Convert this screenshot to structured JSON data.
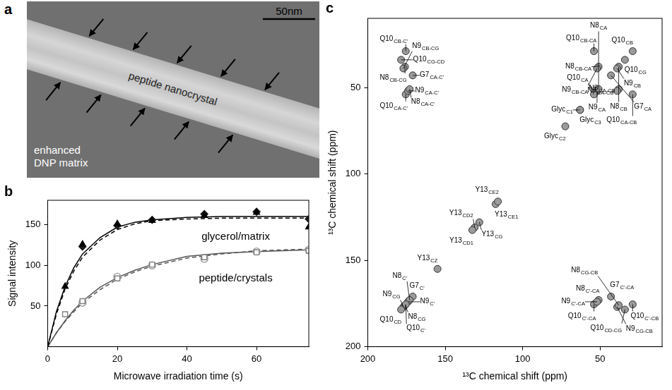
{
  "panel_a": {
    "panel": "a",
    "type": "image",
    "scale_bar": "50nm",
    "band_label": "peptide nanocrystal",
    "matrix_label": [
      "enhanced",
      "DNP matrix"
    ]
  },
  "chart_data": [
    {
      "panel": "b",
      "type": "scatter",
      "x_label": "Microwave irradiation time (s)",
      "y_label": "Signal intensity",
      "xlim": [
        0,
        75
      ],
      "xticks": [
        0,
        20,
        40,
        60
      ],
      "ylim": [
        0,
        180
      ],
      "yticks": [
        50,
        100,
        150
      ],
      "grid": false,
      "series": [
        {
          "type": "scatter",
          "marker": "triangle",
          "color": "#000000",
          "x": [
            5,
            10,
            20,
            30,
            45,
            60,
            75
          ],
          "values": [
            74,
            126,
            151,
            155,
            161,
            165,
            147
          ]
        },
        {
          "type": "scatter",
          "marker": "diamond",
          "color": "#1a1a1a",
          "x": [
            10,
            20,
            30,
            45,
            60,
            75
          ],
          "values": [
            123,
            149,
            156,
            163,
            166,
            157
          ]
        },
        {
          "type": "scatter",
          "marker": "open-square",
          "color": "#808080",
          "x": [
            5,
            10,
            20,
            30,
            45,
            60,
            75
          ],
          "values": [
            40,
            56,
            84,
            101,
            110,
            116,
            118
          ]
        },
        {
          "type": "scatter",
          "marker": "open-circle",
          "color": "#999999",
          "x": [
            10,
            20,
            30,
            45,
            60,
            75
          ],
          "values": [
            54,
            86,
            100,
            108,
            117,
            119
          ]
        },
        {
          "type": "line",
          "line_style": "solid",
          "color": "#000000",
          "x": [
            0,
            2.5,
            5,
            7.5,
            10,
            15,
            20,
            25,
            30,
            40,
            50,
            60,
            75
          ],
          "values": [
            0,
            43,
            74,
            97,
            114,
            134,
            147,
            153,
            156,
            159,
            160,
            160,
            160
          ]
        },
        {
          "type": "line",
          "line_style": "dashed",
          "color": "#000000",
          "x": [
            0,
            2.5,
            5,
            7.5,
            10,
            15,
            20,
            25,
            30,
            40,
            50,
            60,
            75
          ],
          "values": [
            0,
            40,
            71,
            93,
            110,
            131,
            144,
            151,
            155,
            157,
            158,
            158,
            158
          ]
        },
        {
          "type": "line",
          "line_style": "solid",
          "color": "#555555",
          "x": [
            0,
            2.5,
            5,
            7.5,
            10,
            15,
            20,
            25,
            30,
            40,
            50,
            60,
            75
          ],
          "values": [
            0,
            17,
            32,
            45,
            56,
            73,
            85,
            94,
            101,
            111,
            115,
            117,
            119
          ]
        },
        {
          "type": "line",
          "line_style": "dashed",
          "color": "#555555",
          "x": [
            0,
            2.5,
            5,
            7.5,
            10,
            15,
            20,
            25,
            30,
            40,
            50,
            60,
            75
          ],
          "values": [
            0,
            17,
            31,
            43,
            54,
            70,
            83,
            92,
            99,
            109,
            114,
            118,
            120
          ]
        }
      ],
      "annotations": [
        {
          "text": "glycerol/matrix",
          "x": 54,
          "y": 135
        },
        {
          "text": "peptide/crystals",
          "x": 54,
          "y": 84
        }
      ]
    },
    {
      "panel": "c",
      "type": "scatter",
      "x_label": "¹³C chemical shift (ppm)",
      "y_label": "¹³C chemical shift (ppm)",
      "xlim": [
        200,
        10
      ],
      "xticks": [
        200,
        150,
        100,
        50
      ],
      "ylim": [
        200,
        10
      ],
      "yticks": [
        200,
        150,
        100,
        50
      ],
      "grid": false,
      "color": "#9a9a9a",
      "peaks": [
        {
          "residue": "Q10",
          "atoms": "CG-CD",
          "x": 178.5,
          "y": 34
        },
        {
          "residue": "Q10",
          "atoms": "CB-C'",
          "x": 175.5,
          "y": 29
        },
        {
          "residue": "N8",
          "atoms": "CB-CG",
          "x": 176,
          "y": 38
        },
        {
          "residue": "G7",
          "atoms": "CA-C'",
          "x": 171,
          "y": 43
        },
        {
          "residue": "N9",
          "atoms": "CB-CG",
          "x": 177,
          "y": 39
        },
        {
          "residue": "Q10",
          "atoms": "CA-C'",
          "x": 175.5,
          "y": 54
        },
        {
          "residue": "N9",
          "atoms": "CA-C'",
          "x": 174,
          "y": 52
        },
        {
          "residue": "N8",
          "atoms": "CA-C'",
          "x": 173,
          "y": 51
        },
        {
          "residue": "Q10",
          "atoms": "CB-CA",
          "x": 54,
          "y": 29
        },
        {
          "residue": "Q10",
          "atoms": "CB",
          "x": 29,
          "y": 29
        },
        {
          "residue": "Q10",
          "atoms": "CG",
          "x": 34,
          "y": 34
        },
        {
          "residue": "N8",
          "atoms": "CB-CA",
          "x": 51,
          "y": 38
        },
        {
          "residue": "N9",
          "atoms": "CB-CA",
          "x": 52,
          "y": 39
        },
        {
          "residue": "N8",
          "atoms": "CB",
          "x": 38,
          "y": 38
        },
        {
          "residue": "N9",
          "atoms": "CA",
          "x": 52,
          "y": 52
        },
        {
          "residue": "G7",
          "atoms": "CA",
          "x": 43,
          "y": 43
        },
        {
          "residue": "N8",
          "atoms": "CA",
          "x": 51,
          "y": 51
        },
        {
          "residue": "Q10",
          "atoms": "CA",
          "x": 54,
          "y": 54
        },
        {
          "residue": "N9",
          "atoms": "CB",
          "x": 39,
          "y": 39
        },
        {
          "residue": "Q10",
          "atoms": "CA-CB",
          "x": 29,
          "y": 54
        },
        {
          "residue": "Glyc",
          "atoms": "C3",
          "x": 63,
          "y": 63
        },
        {
          "residue": "Glyc",
          "atoms": "C1",
          "x": 63,
          "y": 63
        },
        {
          "residue": "N8",
          "atoms": "CA-CB",
          "x": 38,
          "y": 51
        },
        {
          "residue": "N9",
          "atoms": "CA-CB",
          "x": 39,
          "y": 52
        },
        {
          "residue": "Glyc",
          "atoms": "C2",
          "x": 72.5,
          "y": 72.5
        },
        {
          "residue": "Y13",
          "atoms": "CE1",
          "x": 117.5,
          "y": 117.5
        },
        {
          "residue": "Y13",
          "atoms": "CE2",
          "x": 116,
          "y": 116
        },
        {
          "residue": "Y13",
          "atoms": "CD2",
          "x": 131,
          "y": 131
        },
        {
          "residue": "Y13",
          "atoms": "CG",
          "x": 128,
          "y": 128
        },
        {
          "residue": "Y13",
          "atoms": "CD1",
          "x": 132.5,
          "y": 132.5
        },
        {
          "residue": "Y13",
          "atoms": "CZ",
          "x": 155,
          "y": 155
        },
        {
          "residue": "N9",
          "atoms": "CG",
          "x": 177,
          "y": 177
        },
        {
          "residue": "G7",
          "atoms": "C'",
          "x": 171,
          "y": 171
        },
        {
          "residue": "N8",
          "atoms": "CG",
          "x": 176,
          "y": 176
        },
        {
          "residue": "N9",
          "atoms": "C'",
          "x": 174,
          "y": 174
        },
        {
          "residue": "Q10",
          "atoms": "CD",
          "x": 178.5,
          "y": 178.5
        },
        {
          "residue": "N8",
          "atoms": "C'",
          "x": 173,
          "y": 173
        },
        {
          "residue": "Q10",
          "atoms": "C'",
          "x": 175.5,
          "y": 175.5
        },
        {
          "residue": "N8",
          "atoms": "C'-CA",
          "x": 51,
          "y": 173
        },
        {
          "residue": "Q10",
          "atoms": "C'-CA",
          "x": 54,
          "y": 175.5
        },
        {
          "residue": "N9",
          "atoms": "C'-CA",
          "x": 52,
          "y": 174
        },
        {
          "residue": "G7",
          "atoms": "C'-CA",
          "x": 43,
          "y": 171
        },
        {
          "residue": "Q10",
          "atoms": "C'-CB",
          "x": 29,
          "y": 175.5
        },
        {
          "residue": "Q10",
          "atoms": "CD-CG",
          "x": 34,
          "y": 178.5
        },
        {
          "residue": "N9",
          "atoms": "CG-CB",
          "x": 39,
          "y": 177
        },
        {
          "residue": "N8",
          "atoms": "CG-CB",
          "x": 38,
          "y": 176
        }
      ]
    }
  ]
}
